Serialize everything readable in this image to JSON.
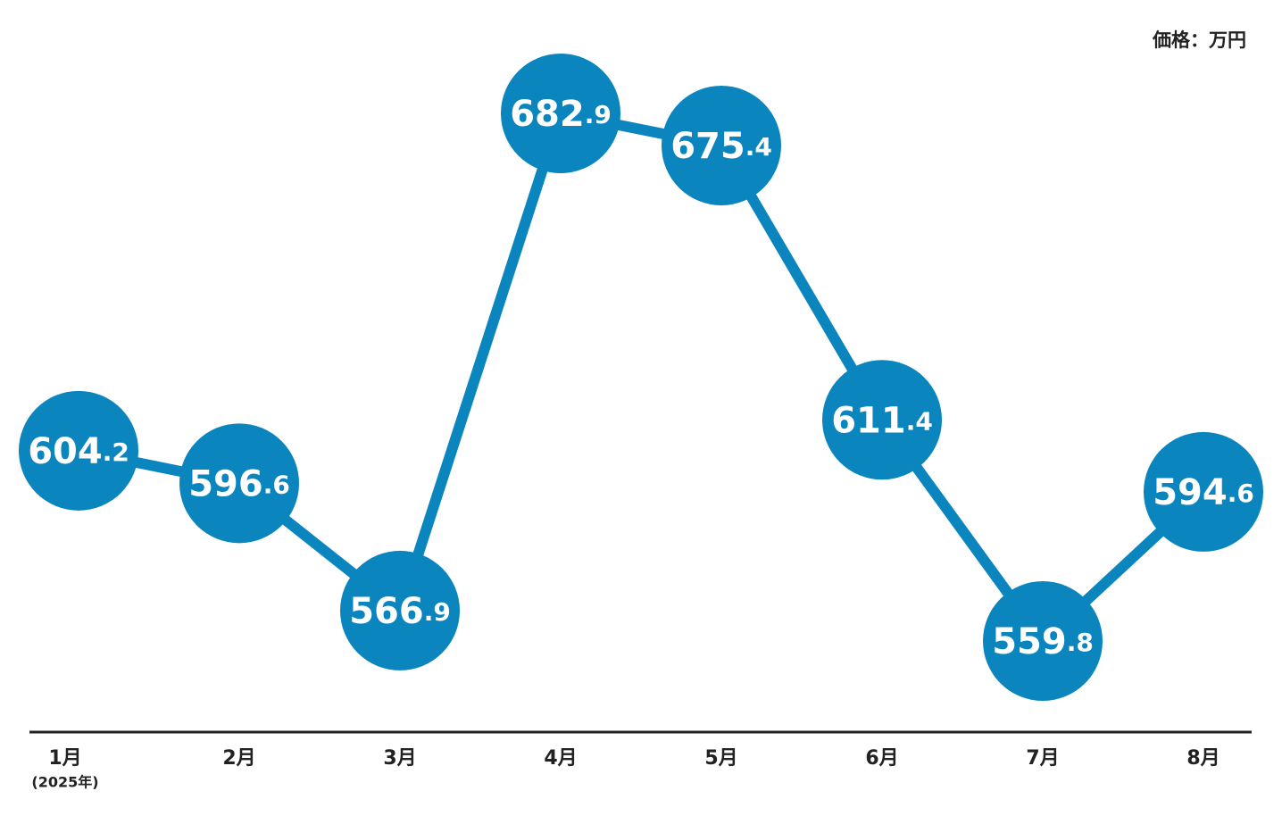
{
  "chart_data": {
    "type": "line",
    "unit_label": "価格：万円",
    "categories": [
      "1月",
      "2月",
      "3月",
      "4月",
      "5月",
      "6月",
      "7月",
      "8月"
    ],
    "first_category_note": "(2025年)",
    "values": [
      604.2,
      596.6,
      566.9,
      682.9,
      675.4,
      611.4,
      559.8,
      594.6
    ],
    "color": "#0a85be"
  }
}
